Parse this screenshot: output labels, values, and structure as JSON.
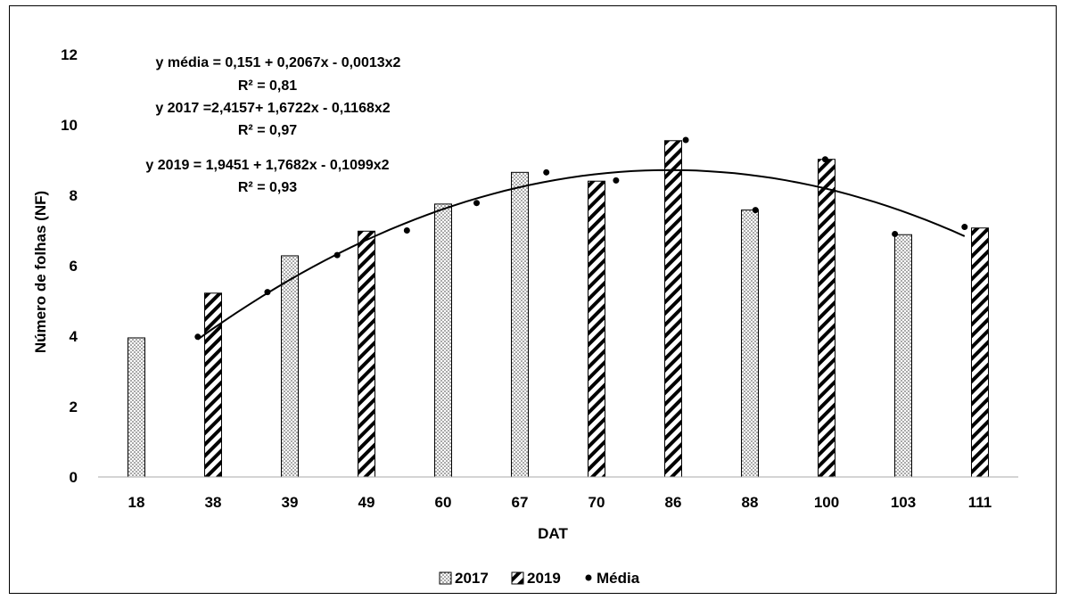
{
  "chart_data": {
    "type": "bar",
    "categories": [
      "18",
      "38",
      "39",
      "49",
      "60",
      "67",
      "70",
      "86",
      "88",
      "100",
      "103",
      "111"
    ],
    "series": [
      {
        "name": "2017",
        "pattern": "dots",
        "values": [
          3.95,
          null,
          6.28,
          null,
          7.75,
          8.65,
          null,
          null,
          7.58,
          null,
          6.88,
          null
        ]
      },
      {
        "name": "2019",
        "pattern": "diagonal",
        "values": [
          null,
          5.22,
          null,
          6.98,
          null,
          null,
          8.4,
          9.55,
          null,
          9.02,
          null,
          7.07
        ]
      }
    ],
    "media_points": [
      3.98,
      5.25,
      6.3,
      7.0,
      7.78,
      8.65,
      8.42,
      9.57,
      7.58,
      9.02,
      6.9,
      7.1
    ],
    "trendline": {
      "type": "polynomial",
      "order": 2
    },
    "equations": [
      "y média  = 0,151 + 0,2067x - 0,0013x2",
      "R² = 0,81",
      "y 2017 =2,4157+ 1,6722x  - 0,1168x2",
      "R² = 0,97",
      "y 2019 = 1,9451 + 1,7682x - 0,1099x2",
      "R² = 0,93"
    ],
    "xlabel": "DAT",
    "ylabel": "Número de folhas (NF)",
    "ylim": [
      0,
      12
    ],
    "yticks": [
      "0",
      "2",
      "4",
      "6",
      "8",
      "10",
      "12"
    ],
    "grid": false,
    "legend": {
      "placement": "bottom",
      "entries": [
        "2017",
        "2019",
        "Média"
      ]
    },
    "colors": {
      "bar_fill": "#ffffff",
      "stroke": "#000000",
      "point": "#000000",
      "line": "#000000"
    }
  }
}
